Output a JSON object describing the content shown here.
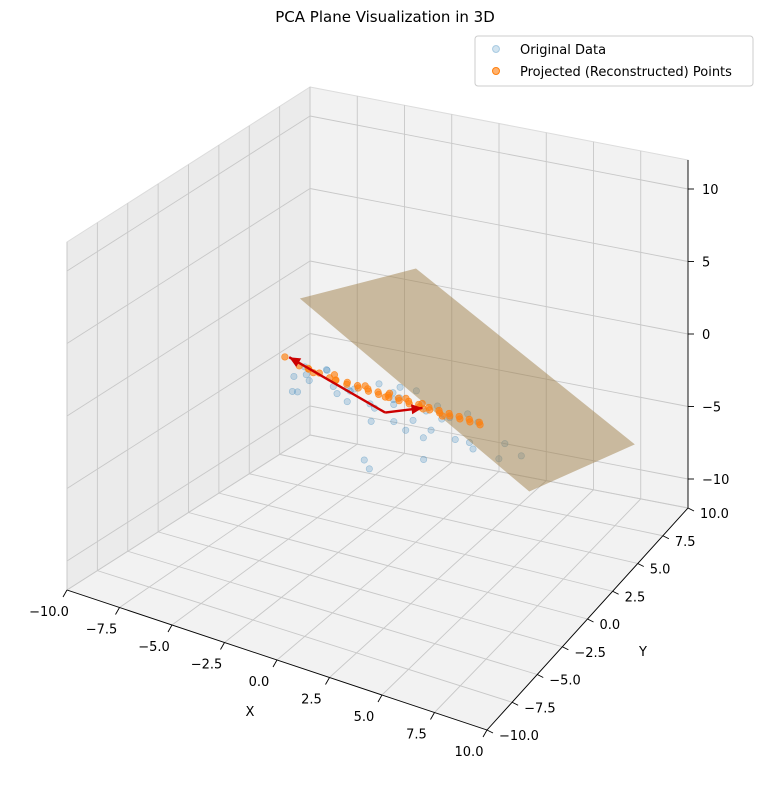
{
  "chart_data": {
    "type": "scatter",
    "projection": "3d",
    "title": "PCA Plane Visualization in 3D",
    "xlabel": "X",
    "ylabel": "Y",
    "zlabel": "",
    "xlim": [
      -10,
      10
    ],
    "ylim": [
      -10,
      10
    ],
    "zlim": [
      -12,
      12
    ],
    "x_ticks": [
      "−10.0",
      "−7.5",
      "−5.0",
      "−2.5",
      "0.0",
      "2.5",
      "5.0",
      "7.5",
      "10.0"
    ],
    "y_ticks": [
      "−10.0",
      "−7.5",
      "−5.0",
      "−2.5",
      "0.0",
      "2.5",
      "5.0",
      "7.5",
      "10.0"
    ],
    "z_ticks": [
      "−10",
      "−5",
      "0",
      "5",
      "10"
    ],
    "grid": true,
    "legend_position": "top-right",
    "colors": {
      "original": "#1f77b4",
      "projected": "#ff7f0e",
      "plane": "#a0804a",
      "arrows": "#cc0000"
    },
    "plane": {
      "corners": [
        [
          -5.0,
          1.0,
          4.0
        ],
        [
          -2.0,
          6.0,
          4.0
        ],
        [
          5.5,
          3.0,
          -7.0
        ],
        [
          8.0,
          8.5,
          -7.0
        ]
      ]
    },
    "components": [
      {
        "from": [
          0.3,
          -0.8,
          -0.8
        ],
        "to": [
          -3.8,
          -2.0,
          2.2
        ]
      },
      {
        "from": [
          0.3,
          -0.8,
          -0.8
        ],
        "to": [
          1.4,
          0.6,
          -1.0
        ]
      }
    ],
    "series": [
      {
        "name": "Original Data",
        "marker": "o",
        "alpha": 0.2,
        "points": [
          [
            -3.0,
            -3.0,
            1.8
          ],
          [
            -2.5,
            -2.8,
            2.0
          ],
          [
            -2.2,
            -1.5,
            1.6
          ],
          [
            -3.6,
            -1.0,
            1.0
          ],
          [
            -1.8,
            -3.8,
            2.5
          ],
          [
            -1.5,
            -2.2,
            1.2
          ],
          [
            -2.8,
            -0.5,
            0.8
          ],
          [
            -3.3,
            -2.6,
            0.4
          ],
          [
            -2.1,
            -0.8,
            -0.4
          ],
          [
            -1.0,
            -1.6,
            0.7
          ],
          [
            -0.7,
            -2.4,
            0.6
          ],
          [
            -1.8,
            0.2,
            -0.6
          ],
          [
            -0.9,
            0.8,
            -0.3
          ],
          [
            -2.5,
            0.8,
            -1.2
          ],
          [
            -0.4,
            -0.9,
            -0.4
          ],
          [
            0.1,
            -1.7,
            -0.9
          ],
          [
            0.6,
            -2.3,
            0.6
          ],
          [
            0.4,
            -0.2,
            -0.6
          ],
          [
            0.9,
            -1.1,
            -1.0
          ],
          [
            1.2,
            0.1,
            -1.6
          ],
          [
            1.6,
            -1.3,
            -1.2
          ],
          [
            2.1,
            -0.6,
            -2.0
          ],
          [
            2.6,
            -1.5,
            -2.7
          ],
          [
            3.1,
            0.5,
            -2.5
          ],
          [
            3.6,
            0.9,
            -2.8
          ],
          [
            2.8,
            2.2,
            -2.0
          ],
          [
            3.4,
            1.6,
            -3.8
          ],
          [
            1.1,
            2.9,
            -3.4
          ],
          [
            0.6,
            3.4,
            -3.0
          ],
          [
            -1.1,
            2.4,
            -2.0
          ],
          [
            0.2,
            2.2,
            -1.3
          ],
          [
            -0.2,
            1.4,
            -1.4
          ],
          [
            1.5,
            1.2,
            -2.9
          ],
          [
            2.5,
            3.7,
            -3.7
          ],
          [
            4.6,
            1.8,
            -4.2
          ],
          [
            5.2,
            2.8,
            -4.5
          ],
          [
            4.2,
            3.1,
            -4.2
          ],
          [
            -1.7,
            0.9,
            -5.9
          ],
          [
            -1.5,
            1.0,
            -6.5
          ],
          [
            0.5,
            -0.4,
            -0.1
          ],
          [
            1.8,
            0.2,
            -0.8
          ],
          [
            -3.5,
            -1.8,
            -0.2
          ],
          [
            0.8,
            1.6,
            -1.6
          ],
          [
            2.0,
            2.0,
            -2.4
          ],
          [
            -0.4,
            1.8,
            -1.0
          ]
        ]
      },
      {
        "name": "Projected (Reconstructed) Points",
        "marker": "o",
        "alpha": 0.6,
        "points": [
          [
            -3.9,
            -2.2,
            2.3
          ],
          [
            -3.3,
            -2.0,
            1.8
          ],
          [
            -3.0,
            -1.7,
            1.5
          ],
          [
            -3.2,
            -1.4,
            1.3
          ],
          [
            -2.7,
            -1.3,
            1.1
          ],
          [
            -2.6,
            -2.0,
            1.6
          ],
          [
            -2.3,
            -1.1,
            0.8
          ],
          [
            -2.1,
            -0.9,
            0.6
          ],
          [
            -1.9,
            -1.3,
            0.9
          ],
          [
            -1.7,
            -0.6,
            0.4
          ],
          [
            -1.5,
            -1.0,
            0.6
          ],
          [
            -1.3,
            -0.4,
            0.2
          ],
          [
            -1.1,
            -0.7,
            0.3
          ],
          [
            -0.9,
            -0.2,
            0.0
          ],
          [
            -0.7,
            -0.5,
            0.1
          ],
          [
            -0.5,
            0.0,
            -0.2
          ],
          [
            -0.3,
            -0.3,
            -0.1
          ],
          [
            -0.1,
            0.2,
            -0.4
          ],
          [
            0.1,
            -0.1,
            -0.3
          ],
          [
            0.3,
            0.4,
            -0.6
          ],
          [
            0.5,
            0.1,
            -0.5
          ],
          [
            0.7,
            0.6,
            -0.8
          ],
          [
            0.9,
            0.3,
            -0.7
          ],
          [
            1.1,
            0.8,
            -1.0
          ],
          [
            1.3,
            0.5,
            -0.9
          ],
          [
            1.5,
            1.0,
            -1.2
          ],
          [
            1.7,
            0.7,
            -1.1
          ],
          [
            1.9,
            1.2,
            -1.4
          ],
          [
            2.1,
            0.9,
            -1.3
          ],
          [
            2.3,
            1.4,
            -1.6
          ],
          [
            2.5,
            1.1,
            -1.5
          ],
          [
            2.7,
            1.6,
            -1.8
          ],
          [
            2.9,
            1.3,
            -1.7
          ],
          [
            3.1,
            1.8,
            -2.0
          ],
          [
            3.3,
            1.5,
            -1.9
          ],
          [
            3.5,
            2.0,
            -2.2
          ],
          [
            3.7,
            1.7,
            -2.1
          ],
          [
            -0.2,
            0.5,
            -0.5
          ],
          [
            0.4,
            0.9,
            -0.9
          ],
          [
            1.0,
            1.3,
            -1.3
          ],
          [
            -1.2,
            0.1,
            -0.1
          ],
          [
            0.2,
            -0.6,
            0.1
          ],
          [
            1.6,
            0.3,
            -0.8
          ],
          [
            2.4,
            0.6,
            -1.2
          ],
          [
            -2.4,
            -0.5,
            0.6
          ]
        ]
      }
    ]
  }
}
